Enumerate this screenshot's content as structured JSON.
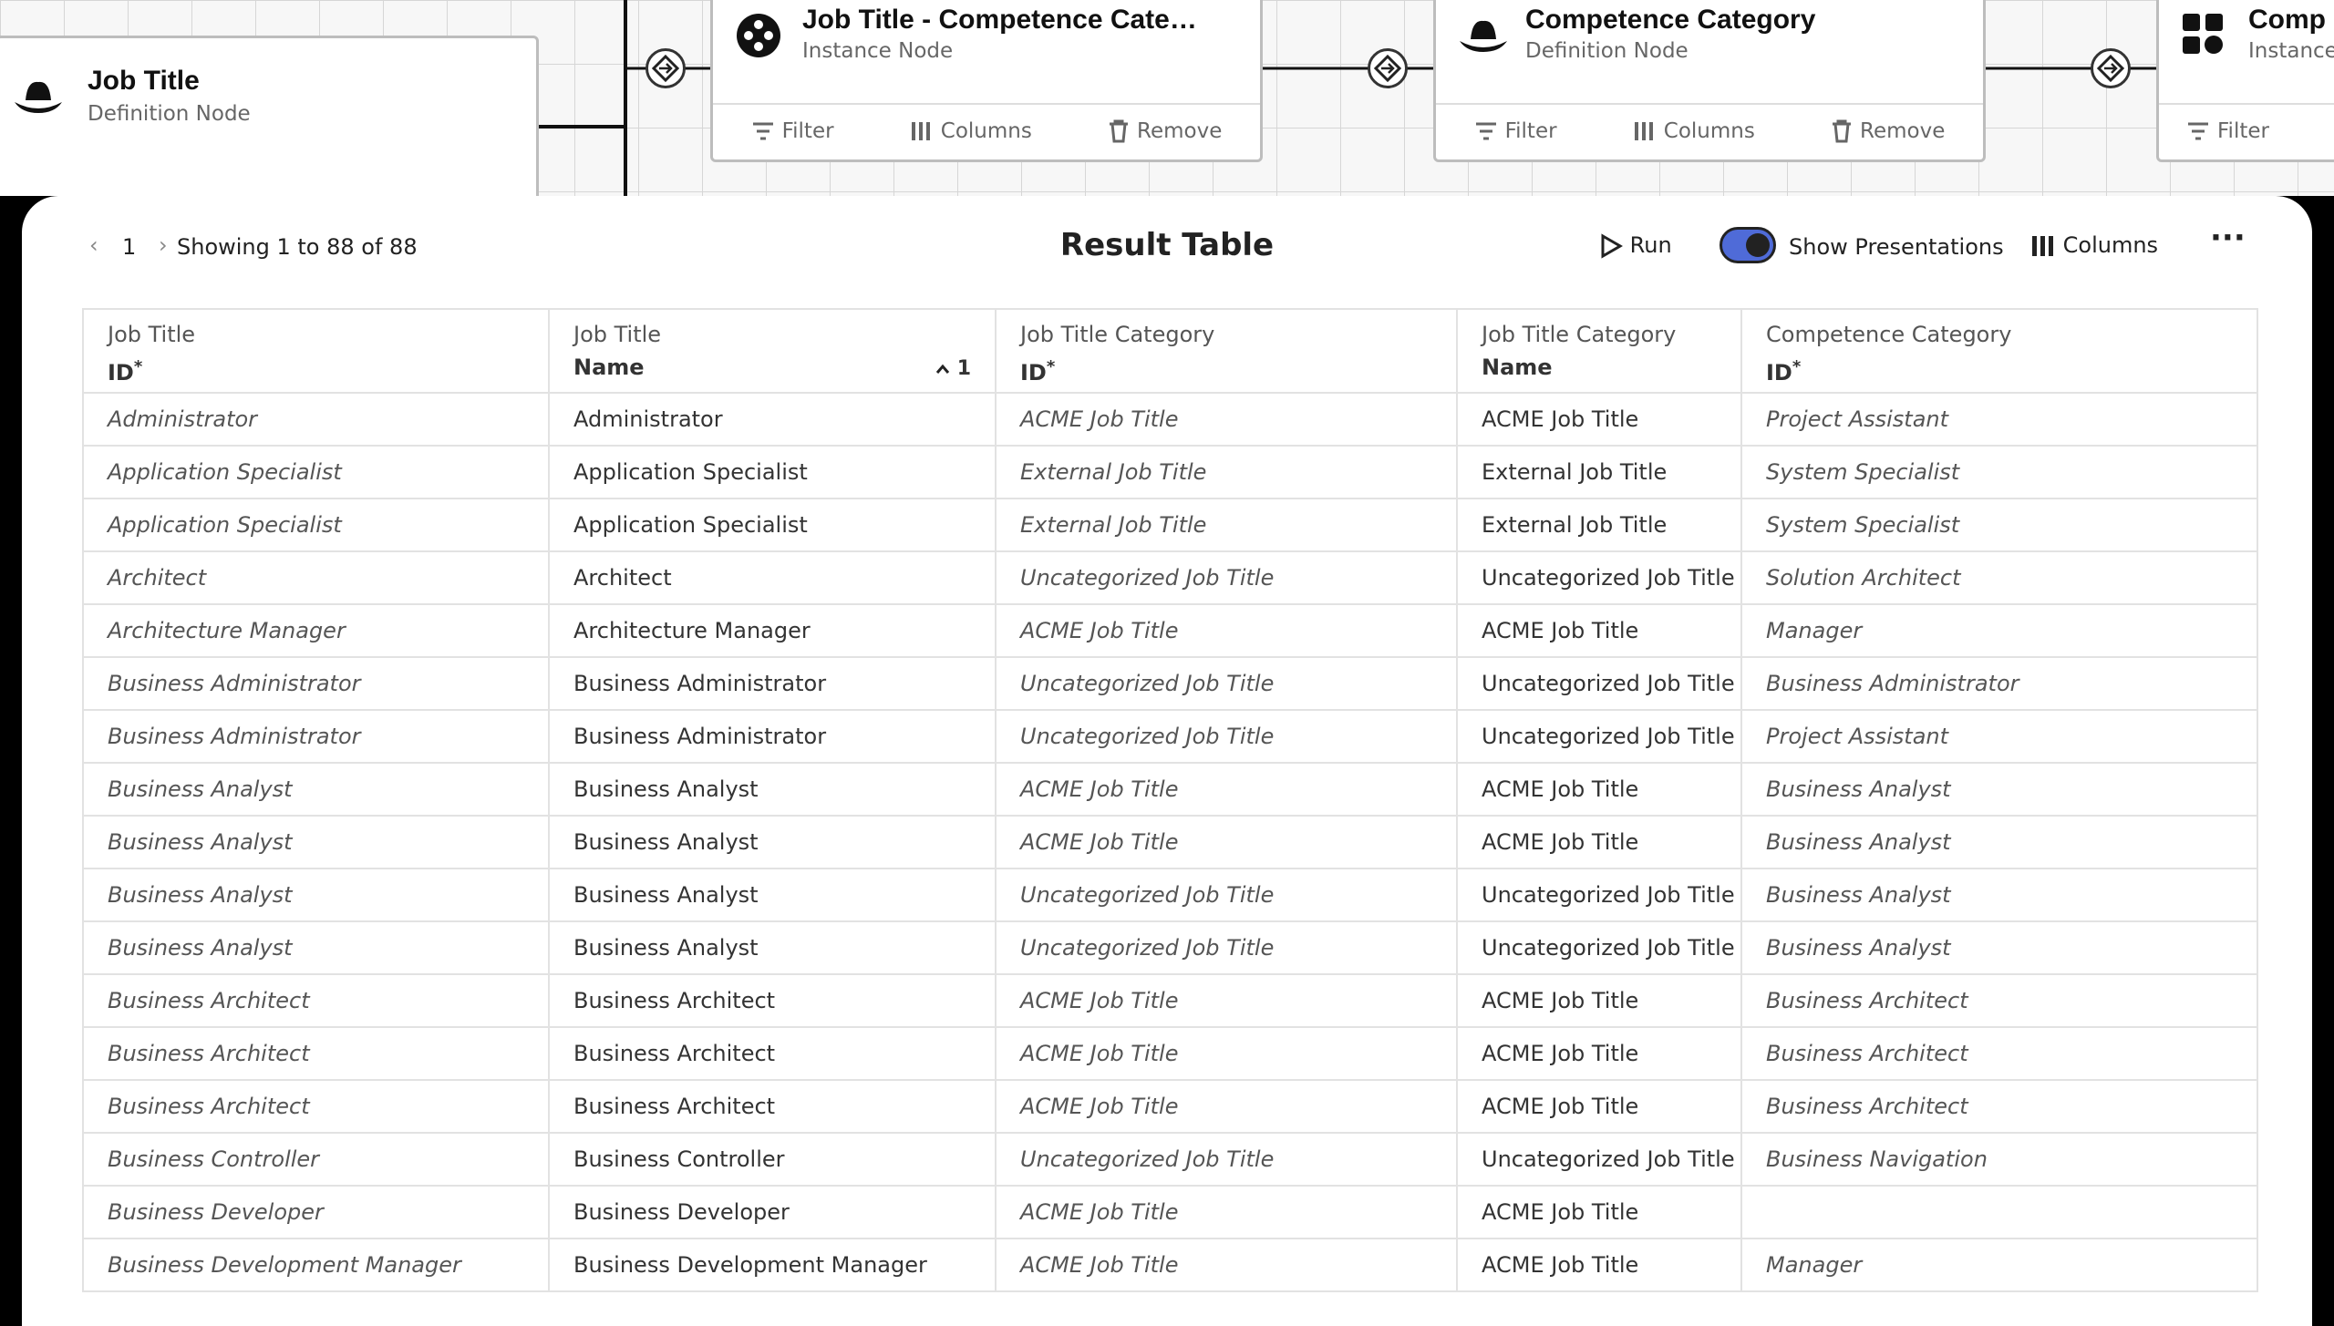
{
  "nodes": [
    {
      "title": "Job Title",
      "subtitle": "Definition Node"
    },
    {
      "title": "Job  Title - Competence Cate…",
      "subtitle": "Instance Node",
      "actions": [
        "Filter",
        "Columns",
        "Remove"
      ]
    },
    {
      "title": "Competence Category",
      "subtitle": "Definition Node",
      "actions": [
        "Filter",
        "Columns",
        "Remove"
      ]
    },
    {
      "title": "Comp",
      "subtitle": "Instance Node",
      "actions": [
        "Filter"
      ]
    }
  ],
  "toolbar": {
    "page": "1",
    "showing": "Showing 1 to 88 of 88",
    "title": "Result Table",
    "run": "Run",
    "toggle": "Show Presentations",
    "columns": "Columns"
  },
  "table": {
    "columns": [
      {
        "entity": "Job Title",
        "attribute": "ID",
        "marker": "*"
      },
      {
        "entity": "Job Title",
        "attribute": "Name",
        "sort": "1"
      },
      {
        "entity": "Job Title Category",
        "attribute": "ID",
        "marker": "*"
      },
      {
        "entity": "Job Title Category",
        "attribute": "Name"
      },
      {
        "entity": "Competence Category",
        "attribute": "ID",
        "marker": "*"
      }
    ],
    "rows": [
      [
        "Administrator",
        "Administrator",
        "ACME Job Title",
        "ACME Job Title",
        "Project Assistant"
      ],
      [
        "Application Specialist",
        "Application Specialist",
        "External Job Title",
        "External Job Title",
        "System Specialist"
      ],
      [
        "Application Specialist",
        "Application Specialist",
        "External Job Title",
        "External Job Title",
        "System Specialist"
      ],
      [
        "Architect",
        "Architect",
        "Uncategorized Job Title",
        "Uncategorized Job Title",
        "Solution Architect"
      ],
      [
        "Architecture Manager",
        "Architecture Manager",
        "ACME Job Title",
        "ACME Job Title",
        "Manager"
      ],
      [
        "Business Administrator",
        "Business Administrator",
        "Uncategorized Job Title",
        "Uncategorized Job Title",
        "Business Administrator"
      ],
      [
        "Business Administrator",
        "Business Administrator",
        "Uncategorized Job Title",
        "Uncategorized Job Title",
        "Project Assistant"
      ],
      [
        "Business Analyst",
        "Business Analyst",
        "ACME Job Title",
        "ACME Job Title",
        "Business Analyst"
      ],
      [
        "Business Analyst",
        "Business Analyst",
        "ACME Job Title",
        "ACME Job Title",
        "Business Analyst"
      ],
      [
        "Business Analyst",
        "Business Analyst",
        "Uncategorized Job Title",
        "Uncategorized Job Title",
        "Business Analyst"
      ],
      [
        "Business Analyst",
        "Business Analyst",
        "Uncategorized Job Title",
        "Uncategorized Job Title",
        "Business Analyst"
      ],
      [
        "Business Architect",
        "Business Architect",
        "ACME Job Title",
        "ACME Job Title",
        "Business Architect"
      ],
      [
        "Business Architect",
        "Business Architect",
        "ACME Job Title",
        "ACME Job Title",
        "Business Architect"
      ],
      [
        "Business Architect",
        "Business Architect",
        "ACME Job Title",
        "ACME Job Title",
        "Business Architect"
      ],
      [
        "Business Controller",
        "Business Controller",
        "Uncategorized Job Title",
        "Uncategorized Job Title",
        "Business Navigation"
      ],
      [
        "Business Developer",
        "Business Developer",
        "ACME Job Title",
        "ACME Job Title",
        null
      ],
      [
        "Business Development Manager",
        "Business Development Manager",
        "ACME Job Title",
        "ACME Job Title",
        "Manager"
      ]
    ]
  }
}
